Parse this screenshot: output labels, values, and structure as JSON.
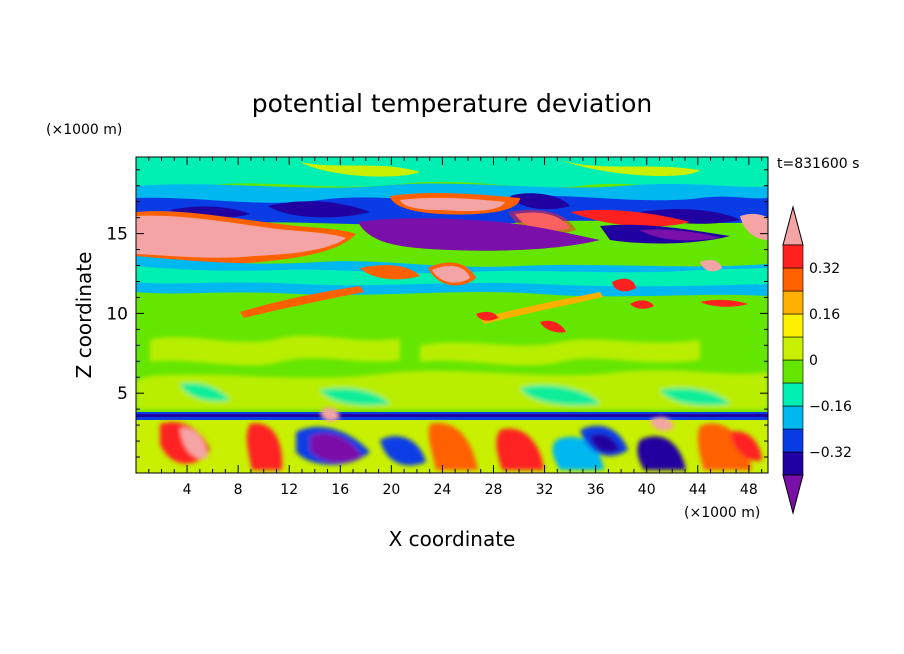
{
  "chart_data": {
    "type": "heatmap",
    "title": "potential temperature deviation",
    "xlabel": "X coordinate",
    "ylabel": "Z coordinate",
    "x_unit": "(×1000 m)",
    "y_unit": "(×1000 m)",
    "time_label": "t=831600 s",
    "xlim": [
      0,
      49.5
    ],
    "ylim": [
      0,
      19.8
    ],
    "x_ticks": [
      4,
      8,
      12,
      16,
      20,
      24,
      28,
      32,
      36,
      40,
      44,
      48
    ],
    "y_ticks": [
      5,
      10,
      15
    ],
    "colorbar": {
      "tick_labels": [
        "0.32",
        "0.16",
        "0",
        "−0.16",
        "−0.32"
      ],
      "levels": [
        -0.4,
        -0.32,
        -0.24,
        -0.16,
        -0.08,
        0,
        0.08,
        0.16,
        0.24,
        0.32,
        0.4
      ],
      "colors": [
        "#7b0fa9",
        "#2000a0",
        "#0a3ce6",
        "#00b8f0",
        "#00f0b4",
        "#64e600",
        "#c8f000",
        "#fff000",
        "#ffb000",
        "#ff6000",
        "#ff2020",
        "#f4a4a4"
      ]
    },
    "features": [
      {
        "field": "upper warm band",
        "z_range": [
          14,
          16.5
        ],
        "value": "> 0.4"
      },
      {
        "field": "upper cold band",
        "z_range": [
          14,
          17.5
        ],
        "value": "< -0.4"
      },
      {
        "field": "cool layer",
        "z_range": [
          12,
          14
        ],
        "value": "-0.08 to -0.16"
      },
      {
        "field": "near-neutral interior",
        "z_range": [
          4,
          12
        ],
        "value": "0 to 0.08"
      },
      {
        "field": "boundary layer turbulence",
        "z_range": [
          0,
          3.7
        ],
        "value": "-0.4 to 0.4"
      }
    ]
  }
}
